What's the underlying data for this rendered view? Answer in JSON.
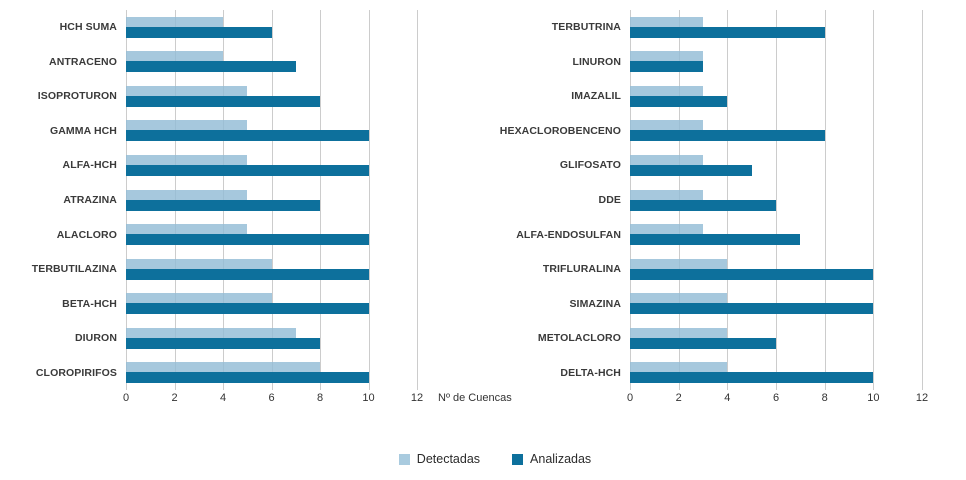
{
  "figure": {
    "background": "#ffffff"
  },
  "colors": {
    "detectadas": "#a9cbdf",
    "analizadas": "#0d709c",
    "gridline": "#cccccc",
    "text": "#333333"
  },
  "legend": {
    "items": [
      {
        "label": "Detectadas",
        "color": "#a9cbdf",
        "series_key": "detectadas"
      },
      {
        "label": "Analizadas",
        "color": "#0d709c",
        "series_key": "analizadas"
      }
    ]
  },
  "chart_data": [
    {
      "type": "bar",
      "orientation": "horizontal",
      "title": "",
      "xlabel": "Nº de Cuencas",
      "ylabel": "",
      "xlim": [
        0,
        12
      ],
      "xticks": [
        0,
        2,
        4,
        6,
        8,
        10,
        12
      ],
      "grid": true,
      "legend_position": "bottom",
      "categories": [
        "HCH SUMA",
        "ANTRACENO",
        "ISOPROTURON",
        "GAMMA HCH",
        "ALFA-HCH",
        "ATRAZINA",
        "ALACLORO",
        "TERBUTILAZINA",
        "BETA-HCH",
        "DIURON",
        "CLOROPIRIFOS"
      ],
      "series": [
        {
          "name": "Detectadas",
          "color": "#a9cbdf",
          "values": [
            4,
            4,
            5,
            5,
            5,
            5,
            5,
            6,
            6,
            7,
            8
          ]
        },
        {
          "name": "Analizadas",
          "color": "#0d709c",
          "values": [
            6,
            7,
            8,
            10,
            10,
            8,
            10,
            10,
            10,
            8,
            10
          ]
        }
      ]
    },
    {
      "type": "bar",
      "orientation": "horizontal",
      "title": "",
      "xlabel": "",
      "ylabel": "",
      "xlim": [
        0,
        12
      ],
      "xticks": [
        0,
        2,
        4,
        6,
        8,
        10,
        12
      ],
      "grid": true,
      "legend_position": "bottom",
      "categories": [
        "TERBUTRINA",
        "LINURON",
        "IMAZALIL",
        "HEXACLOROBENCENO",
        "GLIFOSATO",
        "DDE",
        "ALFA-ENDOSULFAN",
        "TRIFLURALINA",
        "SIMAZINA",
        "METOLACLORO",
        "DELTA-HCH"
      ],
      "series": [
        {
          "name": "Detectadas",
          "color": "#a9cbdf",
          "values": [
            3,
            3,
            3,
            3,
            3,
            3,
            3,
            4,
            4,
            4,
            4
          ]
        },
        {
          "name": "Analizadas",
          "color": "#0d709c",
          "values": [
            8,
            3,
            4,
            8,
            5,
            6,
            7,
            10,
            10,
            6,
            10
          ]
        }
      ]
    }
  ]
}
